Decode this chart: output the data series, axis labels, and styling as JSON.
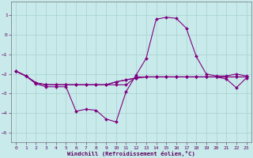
{
  "xlabel": "Windchill (Refroidissement éolien,°C)",
  "bg_color": "#c8eaea",
  "grid_color": "#a8d0d0",
  "line_color": "#800080",
  "xlim": [
    -0.5,
    23.5
  ],
  "ylim": [
    -5.5,
    1.7
  ],
  "yticks": [
    -5,
    -4,
    -3,
    -2,
    -1,
    0,
    1
  ],
  "xticks": [
    0,
    1,
    2,
    3,
    4,
    5,
    6,
    7,
    8,
    9,
    10,
    11,
    12,
    13,
    14,
    15,
    16,
    17,
    18,
    19,
    20,
    21,
    22,
    23
  ],
  "series": [
    {
      "x": [
        0,
        1,
        2,
        3,
        4,
        5,
        6,
        7,
        8,
        9,
        10,
        11,
        12,
        13,
        14,
        15,
        16,
        17,
        18,
        19,
        20,
        21,
        22,
        23
      ],
      "y": [
        -1.85,
        -2.1,
        -2.5,
        -2.65,
        -2.65,
        -2.65,
        -3.9,
        -3.8,
        -3.85,
        -4.3,
        -4.45,
        -2.9,
        -2.05,
        -1.2,
        0.8,
        0.9,
        0.85,
        0.35,
        -1.1,
        -2.0,
        -2.1,
        -2.1,
        -2.0,
        -2.1
      ]
    },
    {
      "x": [
        0,
        1,
        2,
        3,
        4,
        5,
        6,
        7,
        8,
        9,
        10,
        11,
        12,
        13,
        14,
        15,
        16,
        17,
        18,
        19,
        20,
        21,
        22,
        23
      ],
      "y": [
        -1.85,
        -2.1,
        -2.45,
        -2.55,
        -2.55,
        -2.55,
        -2.55,
        -2.55,
        -2.55,
        -2.55,
        -2.55,
        -2.55,
        -2.15,
        -2.15,
        -2.15,
        -2.15,
        -2.15,
        -2.15,
        -2.15,
        -2.15,
        -2.15,
        -2.15,
        -2.15,
        -2.15
      ]
    },
    {
      "x": [
        0,
        1,
        2,
        3,
        4,
        5,
        6,
        7,
        8,
        9,
        10,
        11,
        12,
        13,
        14,
        15,
        16,
        17,
        18,
        19,
        20,
        21,
        22,
        23
      ],
      "y": [
        -1.85,
        -2.1,
        -2.45,
        -2.55,
        -2.55,
        -2.55,
        -2.55,
        -2.55,
        -2.55,
        -2.55,
        -2.4,
        -2.3,
        -2.2,
        -2.15,
        -2.15,
        -2.15,
        -2.15,
        -2.15,
        -2.15,
        -2.15,
        -2.15,
        -2.15,
        -2.15,
        -2.15
      ]
    },
    {
      "x": [
        0,
        1,
        2,
        3,
        4,
        5,
        6,
        7,
        8,
        9,
        10,
        11,
        12,
        13,
        14,
        15,
        16,
        17,
        18,
        19,
        20,
        21,
        22,
        23
      ],
      "y": [
        -1.85,
        -2.1,
        -2.45,
        -2.55,
        -2.55,
        -2.55,
        -2.55,
        -2.55,
        -2.55,
        -2.55,
        -2.4,
        -2.3,
        -2.2,
        -2.15,
        -2.15,
        -2.15,
        -2.15,
        -2.15,
        -2.15,
        -2.15,
        -2.15,
        -2.25,
        -2.7,
        -2.2
      ]
    }
  ],
  "marker": "D",
  "markersize": 2.0,
  "linewidth": 0.8,
  "tick_fontsize": 4.5,
  "label_fontsize": 5.2,
  "tick_color": "#600060"
}
